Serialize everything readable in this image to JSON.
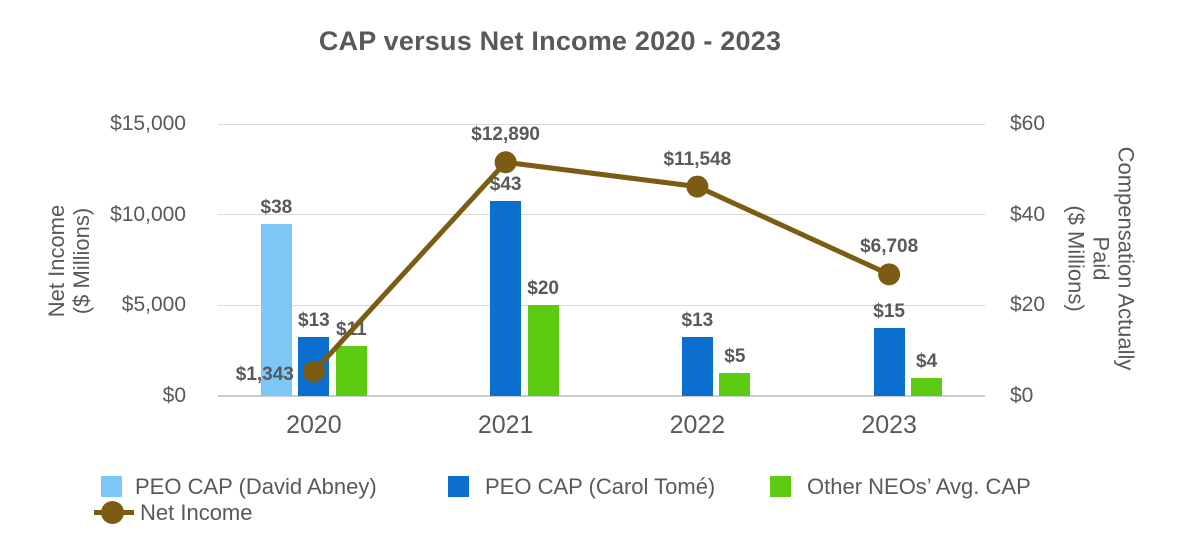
{
  "title": "CAP versus Net Income 2020 - 2023",
  "chart_data": {
    "type": "combo_bar_line",
    "categories": [
      "2020",
      "2021",
      "2022",
      "2023"
    ],
    "bar_series": [
      {
        "name": "PEO CAP (David Abney)",
        "color": "#7EC8F8",
        "axis": "right",
        "values": [
          38,
          null,
          null,
          null
        ],
        "labels": [
          "$38",
          "",
          "",
          ""
        ]
      },
      {
        "name": "PEO CAP (Carol Tomé)",
        "color": "#0A6FCF",
        "axis": "right",
        "values": [
          13,
          43,
          13,
          15
        ],
        "labels": [
          "$13",
          "$43",
          "$13",
          "$15"
        ]
      },
      {
        "name": "Other NEOs’ Avg. CAP",
        "color": "#5CCB11",
        "axis": "right",
        "values": [
          11,
          20,
          5,
          4
        ],
        "labels": [
          "$11",
          "$20",
          "$5",
          "$4"
        ]
      }
    ],
    "line_series": {
      "name": "Net Income",
      "color": "#7B5C12",
      "axis": "left",
      "values": [
        1343,
        12890,
        11548,
        6708
      ],
      "labels": [
        "$1,343",
        "$12,890",
        "$11,548",
        "$6,708"
      ],
      "label_placement": [
        "left",
        "above",
        "above",
        "above"
      ]
    },
    "left_axis": {
      "title_lines": [
        "Net Income",
        "($ Millions)"
      ],
      "max": 15000,
      "ticks": [
        {
          "value": 0,
          "label": "$0"
        },
        {
          "value": 5000,
          "label": "$5,000"
        },
        {
          "value": 10000,
          "label": "$10,000"
        },
        {
          "value": 15000,
          "label": "$15,000"
        }
      ]
    },
    "right_axis": {
      "title_lines": [
        "Compensation Actually",
        "Paid",
        "($ Millions)"
      ],
      "max": 60,
      "ticks": [
        {
          "value": 0,
          "label": "$0"
        },
        {
          "value": 20,
          "label": "$20"
        },
        {
          "value": 40,
          "label": "$40"
        },
        {
          "value": 60,
          "label": "$60"
        }
      ]
    },
    "grid": true,
    "legend_position": "bottom",
    "text_color": "#595959",
    "grid_color": "#D9D9D9",
    "axis_line_color": "#CBCBCB",
    "background": "#FFFFFF"
  }
}
